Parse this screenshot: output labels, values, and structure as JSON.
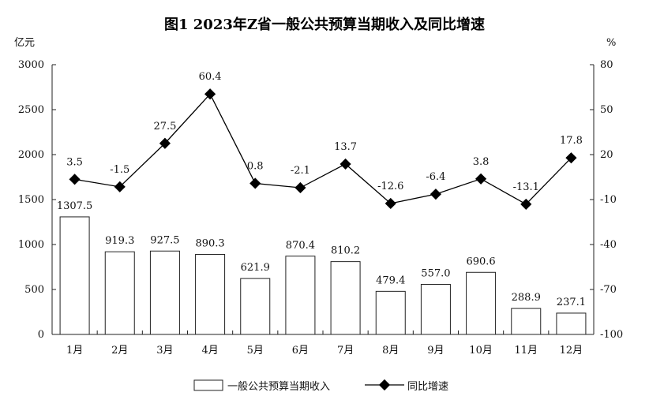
{
  "chart_data": {
    "type": "bar",
    "title": "图1  2023年Z省一般公共预算当期收入及同比增速",
    "ylabel_left": "亿元",
    "ylabel_right": "%",
    "categories": [
      "1月",
      "2月",
      "3月",
      "4月",
      "5月",
      "6月",
      "7月",
      "8月",
      "9月",
      "10月",
      "11月",
      "12月"
    ],
    "series": [
      {
        "name": "一般公共预算当期收入",
        "type": "bar",
        "axis": "left",
        "values": [
          1307.5,
          919.3,
          927.5,
          890.3,
          621.9,
          870.4,
          810.2,
          479.4,
          557.0,
          690.6,
          288.9,
          237.1
        ],
        "labels": [
          "1307.5",
          "919.3",
          "927.5",
          "890.3",
          "621.9",
          "870.4",
          "810.2",
          "479.4",
          "557.0",
          "690.6",
          "288.9",
          "237.1"
        ]
      },
      {
        "name": "同比增速",
        "type": "line",
        "axis": "right",
        "values": [
          3.5,
          -1.5,
          27.5,
          60.4,
          0.8,
          -2.1,
          13.7,
          -12.6,
          -6.4,
          3.8,
          -13.1,
          17.8
        ],
        "labels": [
          "3.5",
          "-1.5",
          "27.5",
          "60.4",
          "0.8",
          "-2.1",
          "13.7",
          "-12.6",
          "-6.4",
          "3.8",
          "-13.1",
          "17.8"
        ]
      }
    ],
    "ylim_left": [
      0,
      3000
    ],
    "yticks_left": [
      "0",
      "500",
      "1000",
      "1500",
      "2000",
      "2500",
      "3000"
    ],
    "ylim_right": [
      -100,
      80
    ],
    "yticks_right": [
      "-100",
      "-70",
      "-40",
      "-10",
      "20",
      "50",
      "80"
    ],
    "grid": false,
    "legend_position": "bottom",
    "colors": {
      "bar_fill": "#ffffff",
      "bar_stroke": "#222222",
      "line": "#000000",
      "axis": "#222222"
    }
  }
}
